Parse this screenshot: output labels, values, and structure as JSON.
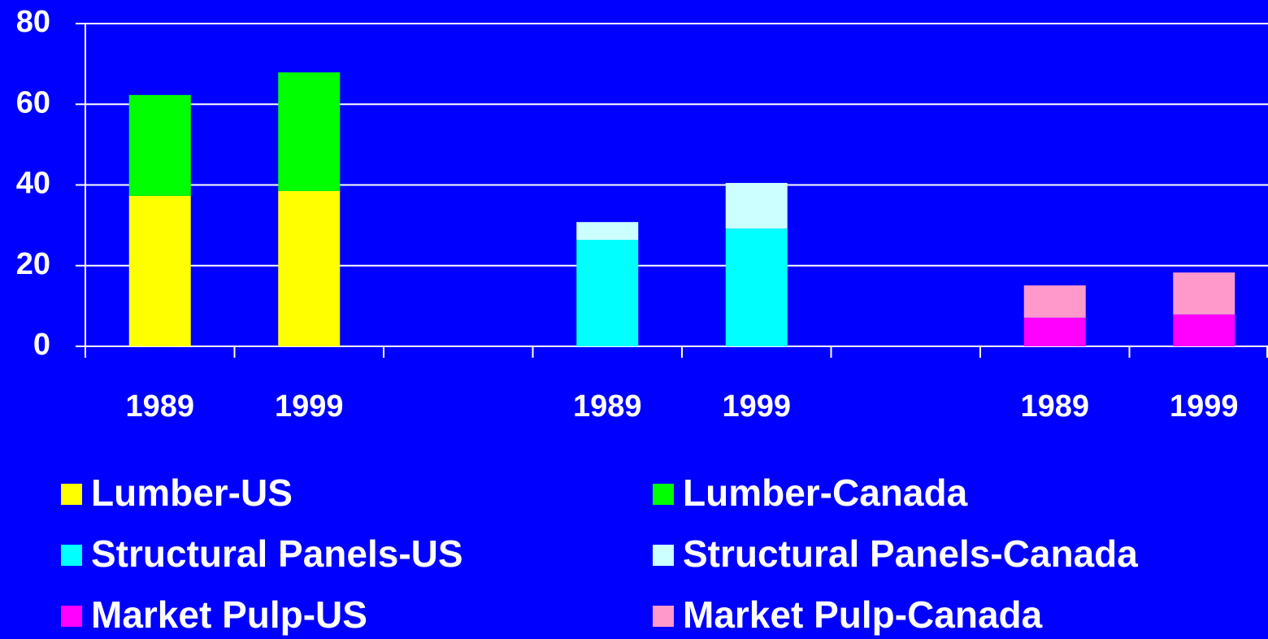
{
  "chart_data": {
    "type": "stacked_bar",
    "categories": [
      "1989",
      "1999",
      null,
      "1989",
      "1999",
      null,
      "1989",
      "1999"
    ],
    "series": [
      {
        "name": "Lumber-US",
        "color": "#ffff00",
        "values": [
          37.3,
          38.5,
          null,
          null,
          null,
          null,
          null,
          null
        ]
      },
      {
        "name": "Lumber-Canada",
        "color": "#00ff00",
        "values": [
          25,
          29.4,
          null,
          null,
          null,
          null,
          null,
          null
        ]
      },
      {
        "name": "Structural Panels-US",
        "color": "#00ffff",
        "values": [
          null,
          null,
          null,
          26.4,
          29.2,
          null,
          null,
          null
        ]
      },
      {
        "name": "Structural Panels-Canada",
        "color": "#ccffff",
        "values": [
          null,
          null,
          null,
          4.4,
          11.3,
          null,
          null,
          null
        ]
      },
      {
        "name": "Market Pulp-US",
        "color": "#ff00ff",
        "values": [
          null,
          null,
          null,
          null,
          null,
          null,
          7.1,
          7.9
        ]
      },
      {
        "name": "Market Pulp-Canada",
        "color": "#ff99cc",
        "values": [
          null,
          null,
          null,
          null,
          null,
          null,
          8,
          10.4
        ]
      }
    ],
    "ylim": [
      0,
      80
    ],
    "yticks": [
      0,
      20,
      40,
      60,
      80
    ],
    "grid": true
  }
}
